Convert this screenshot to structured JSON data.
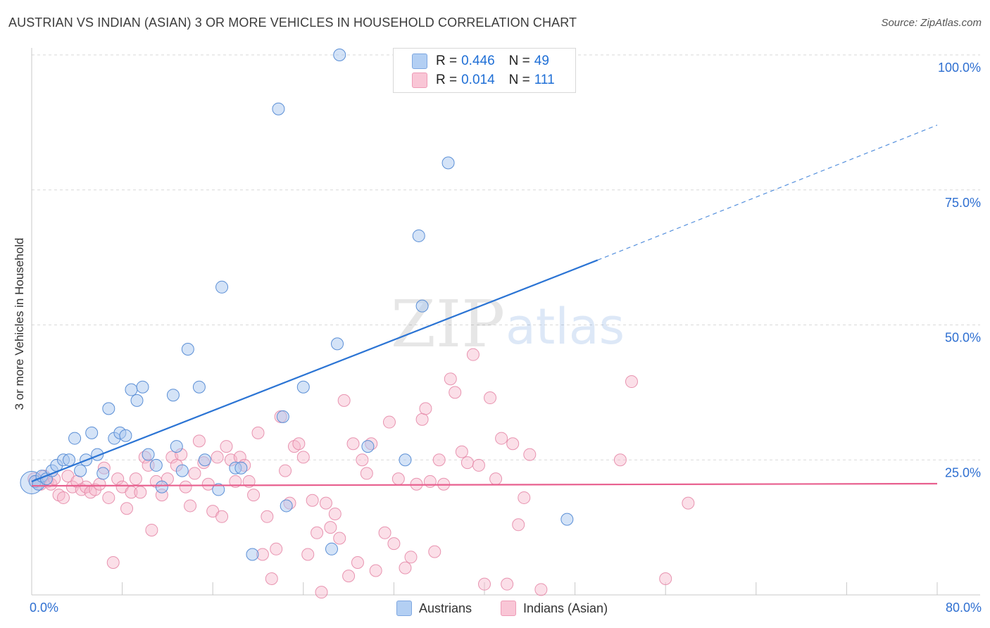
{
  "title": "AUSTRIAN VS INDIAN (ASIAN) 3 OR MORE VEHICLES IN HOUSEHOLD CORRELATION CHART",
  "source": "Source: ZipAtlas.com",
  "watermark": {
    "zip": "ZIP",
    "atlas": "atlas"
  },
  "legend": {
    "austrians": {
      "r_label": "R = ",
      "r_value": "0.446",
      "n_label": "N = ",
      "n_value": "49"
    },
    "indians": {
      "r_label": "R = ",
      "r_value": "0.014",
      "n_label": "N = ",
      "n_value": "111"
    }
  },
  "bottom_legend": {
    "austrians": "Austrians",
    "indians": "Indians (Asian)"
  },
  "colors": {
    "austrians_fill": "#a9c8f0",
    "austrians_stroke": "#5b8fd6",
    "austrians_line": "#2b74d4",
    "indians_fill": "#f6b9cc",
    "indians_stroke": "#e68aa8",
    "indians_line": "#e8608f",
    "tick_text": "#2e6fd1",
    "grid": "#d9d9d9"
  },
  "chart_data": {
    "type": "scatter",
    "title": "AUSTRIAN VS INDIAN (ASIAN) 3 OR MORE VEHICLES IN HOUSEHOLD CORRELATION CHART",
    "xlabel": "",
    "ylabel": "3 or more Vehicles in Household",
    "xlim": [
      0,
      80
    ],
    "ylim": [
      0,
      100
    ],
    "x_tick_labels": [
      "0.0%",
      "80.0%"
    ],
    "y_ticks": [
      25,
      50,
      75,
      100
    ],
    "y_tick_labels": [
      "25.0%",
      "50.0%",
      "75.0%",
      "100.0%"
    ],
    "grid": true,
    "legend_position": "top-center",
    "series": [
      {
        "name": "Austrians",
        "r": 0.446,
        "n": 49,
        "trend": {
          "x0": 0,
          "y0": 21,
          "x1": 50,
          "y1": 62,
          "dashed_to_x": 80,
          "dashed_to_y": 87
        },
        "points": [
          [
            0.3,
            21
          ],
          [
            0.6,
            20.5
          ],
          [
            0.9,
            22
          ],
          [
            1.3,
            21.5
          ],
          [
            1.8,
            23
          ],
          [
            2.2,
            24
          ],
          [
            2.8,
            25
          ],
          [
            3.3,
            25
          ],
          [
            3.8,
            29
          ],
          [
            4.3,
            23
          ],
          [
            4.8,
            25
          ],
          [
            5.3,
            30
          ],
          [
            5.8,
            26
          ],
          [
            6.3,
            22.5
          ],
          [
            6.8,
            34.5
          ],
          [
            7.3,
            29
          ],
          [
            7.8,
            30
          ],
          [
            8.3,
            29.5
          ],
          [
            8.8,
            38
          ],
          [
            9.3,
            36
          ],
          [
            9.8,
            38.5
          ],
          [
            10.3,
            26
          ],
          [
            11.0,
            24
          ],
          [
            11.5,
            20
          ],
          [
            12.5,
            37
          ],
          [
            12.8,
            27.5
          ],
          [
            13.3,
            23
          ],
          [
            13.8,
            45.5
          ],
          [
            14.8,
            38.5
          ],
          [
            15.3,
            25
          ],
          [
            16.5,
            19.5
          ],
          [
            16.8,
            57
          ],
          [
            18.0,
            23.5
          ],
          [
            18.5,
            23.5
          ],
          [
            19.5,
            7.5
          ],
          [
            22.2,
            33
          ],
          [
            21.8,
            90
          ],
          [
            22.5,
            16.5
          ],
          [
            24.0,
            38.5
          ],
          [
            26.5,
            8.5
          ],
          [
            27.0,
            46.5
          ],
          [
            27.2,
            100
          ],
          [
            29.7,
            27.5
          ],
          [
            33.0,
            25
          ],
          [
            34.2,
            66.5
          ],
          [
            34.5,
            53.5
          ],
          [
            36.8,
            80
          ],
          [
            39.7,
            100
          ],
          [
            47.3,
            14
          ]
        ]
      },
      {
        "name": "Indians (Asian)",
        "r": 0.014,
        "n": 111,
        "trend": {
          "x0": 0,
          "y0": 20.2,
          "x1": 80,
          "y1": 20.6
        },
        "points": [
          [
            0.2,
            21.5
          ],
          [
            0.5,
            21
          ],
          [
            0.8,
            20.5
          ],
          [
            1.1,
            22
          ],
          [
            1.4,
            21
          ],
          [
            1.7,
            20.5
          ],
          [
            2.0,
            21.5
          ],
          [
            2.4,
            18.5
          ],
          [
            2.8,
            18
          ],
          [
            3.2,
            22
          ],
          [
            3.6,
            20
          ],
          [
            4.0,
            21
          ],
          [
            4.4,
            19.5
          ],
          [
            4.8,
            20
          ],
          [
            5.2,
            19
          ],
          [
            5.6,
            19.5
          ],
          [
            6.0,
            20.5
          ],
          [
            6.4,
            23.5
          ],
          [
            6.8,
            18
          ],
          [
            7.2,
            6
          ],
          [
            7.6,
            21.5
          ],
          [
            8.0,
            20
          ],
          [
            8.4,
            16
          ],
          [
            8.8,
            19
          ],
          [
            9.2,
            21.5
          ],
          [
            9.6,
            19
          ],
          [
            10.0,
            25.5
          ],
          [
            10.3,
            24
          ],
          [
            10.6,
            12
          ],
          [
            11.0,
            21
          ],
          [
            11.5,
            18.5
          ],
          [
            12.0,
            21.5
          ],
          [
            12.4,
            25.5
          ],
          [
            12.8,
            24
          ],
          [
            13.2,
            26
          ],
          [
            13.6,
            20
          ],
          [
            14.0,
            16.5
          ],
          [
            14.4,
            22.5
          ],
          [
            14.8,
            28.5
          ],
          [
            15.2,
            24.5
          ],
          [
            15.6,
            20.5
          ],
          [
            16.0,
            15.5
          ],
          [
            16.4,
            25.5
          ],
          [
            16.8,
            14.5
          ],
          [
            17.2,
            27.5
          ],
          [
            17.6,
            25
          ],
          [
            18.0,
            21
          ],
          [
            18.4,
            25.5
          ],
          [
            18.8,
            24
          ],
          [
            19.2,
            21
          ],
          [
            19.6,
            18.5
          ],
          [
            20.0,
            30
          ],
          [
            20.4,
            7.5
          ],
          [
            20.8,
            14.5
          ],
          [
            21.2,
            3
          ],
          [
            21.6,
            8.5
          ],
          [
            22.0,
            33
          ],
          [
            22.4,
            23
          ],
          [
            22.8,
            17
          ],
          [
            23.2,
            27.5
          ],
          [
            23.6,
            28
          ],
          [
            24.0,
            25.5
          ],
          [
            24.4,
            7.5
          ],
          [
            24.8,
            17.5
          ],
          [
            25.2,
            11.5
          ],
          [
            25.6,
            0.5
          ],
          [
            26.0,
            17
          ],
          [
            26.4,
            12.5
          ],
          [
            26.8,
            15
          ],
          [
            27.2,
            10.5
          ],
          [
            27.6,
            36
          ],
          [
            28.0,
            3.5
          ],
          [
            28.4,
            28
          ],
          [
            28.8,
            6
          ],
          [
            29.2,
            25
          ],
          [
            29.6,
            22.5
          ],
          [
            30.0,
            28
          ],
          [
            30.4,
            4.5
          ],
          [
            31.2,
            11.5
          ],
          [
            31.6,
            32
          ],
          [
            32.0,
            9.5
          ],
          [
            32.4,
            21.5
          ],
          [
            33.0,
            5
          ],
          [
            33.5,
            7
          ],
          [
            34.0,
            20.5
          ],
          [
            34.5,
            32.5
          ],
          [
            34.8,
            34.5
          ],
          [
            35.2,
            21
          ],
          [
            35.6,
            8
          ],
          [
            36.0,
            25
          ],
          [
            36.4,
            20.5
          ],
          [
            37.0,
            40
          ],
          [
            37.4,
            37.5
          ],
          [
            38.0,
            26.5
          ],
          [
            38.5,
            24.5
          ],
          [
            39.0,
            44.5
          ],
          [
            39.5,
            24
          ],
          [
            40.0,
            2
          ],
          [
            40.5,
            36.5
          ],
          [
            41.0,
            21.5
          ],
          [
            41.5,
            29
          ],
          [
            42.0,
            2
          ],
          [
            42.5,
            28
          ],
          [
            43.0,
            13
          ],
          [
            43.5,
            18
          ],
          [
            44.0,
            26
          ],
          [
            45.0,
            1
          ],
          [
            52.0,
            25
          ],
          [
            53.0,
            39.5
          ],
          [
            56.0,
            3
          ],
          [
            58.0,
            17
          ]
        ]
      }
    ]
  }
}
